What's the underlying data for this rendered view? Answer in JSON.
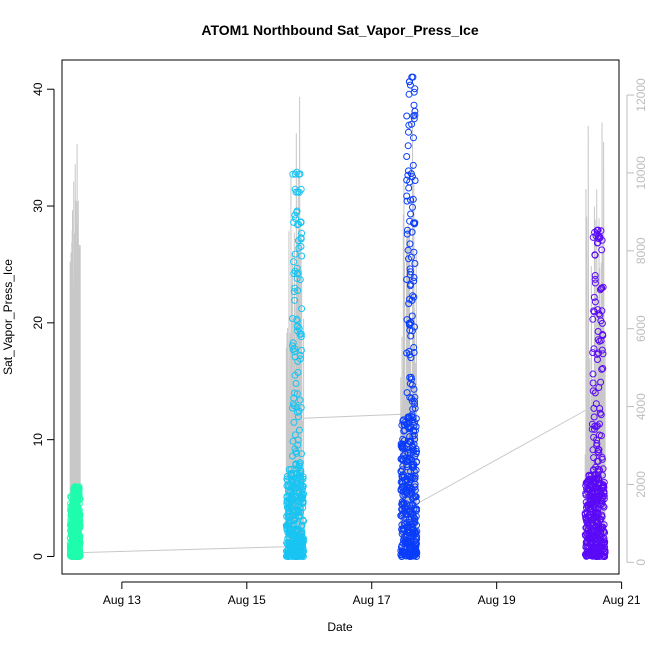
{
  "chart_data": {
    "type": "scatter",
    "title": "ATOM1 Northbound Sat_Vapor_Press_Ice",
    "xlabel": "Date",
    "ylabel": "Sat_Vapor_Press_Ice",
    "x_type": "date",
    "xlim": [
      "2023-08-12T01:00",
      "2023-08-20T23:00"
    ],
    "ylim": [
      -1.5,
      42.5
    ],
    "y2lim": [
      -300,
      12900
    ],
    "x_ticks": [
      {
        "label": "Aug 13",
        "value": "2023-08-13"
      },
      {
        "label": "Aug 15",
        "value": "2023-08-15"
      },
      {
        "label": "Aug 17",
        "value": "2023-08-17"
      },
      {
        "label": "Aug 19",
        "value": "2023-08-19"
      },
      {
        "label": "Aug 21",
        "value": "2023-08-21"
      }
    ],
    "y_ticks": [
      0,
      10,
      20,
      30,
      40
    ],
    "y2_ticks": [
      0,
      2000,
      4000,
      6000,
      8000,
      10000,
      12000
    ],
    "grid": false,
    "secondary_axis_color": "#bdbdbd",
    "line_color": "#c8c8c8",
    "groups": [
      {
        "x_start": "2023-08-12T04:10",
        "x_end": "2023-08-12T08:00",
        "y_dense_max": 5.2,
        "y_max": 6.0,
        "color": "#1ffdae"
      },
      {
        "x_start": "2023-08-15T15:10",
        "x_end": "2023-08-15T21:50",
        "y_dense_max": 7.5,
        "y_max": 33.2,
        "color": "#18c4f2"
      },
      {
        "x_start": "2023-08-17T11:10",
        "x_end": "2023-08-17T17:20",
        "y_dense_max": 12.0,
        "y_max": 41.2,
        "color": "#0a3dfa"
      },
      {
        "x_start": "2023-08-20T10:00",
        "x_end": "2023-08-20T17:40",
        "y_dense_max": 7.0,
        "y_max": 28.0,
        "color": "#5a0af7"
      }
    ],
    "connector_points_y2": [
      {
        "x": "2023-08-12T08:00",
        "y2": 250
      },
      {
        "x": "2023-08-15T15:10",
        "y2": 400
      },
      {
        "x": "2023-08-15T21:50",
        "y2": 3700
      },
      {
        "x": "2023-08-17T11:10",
        "y2": 3800
      },
      {
        "x": "2023-08-17T17:20",
        "y2": 1500
      },
      {
        "x": "2023-08-20T10:00",
        "y2": 3900
      }
    ]
  }
}
